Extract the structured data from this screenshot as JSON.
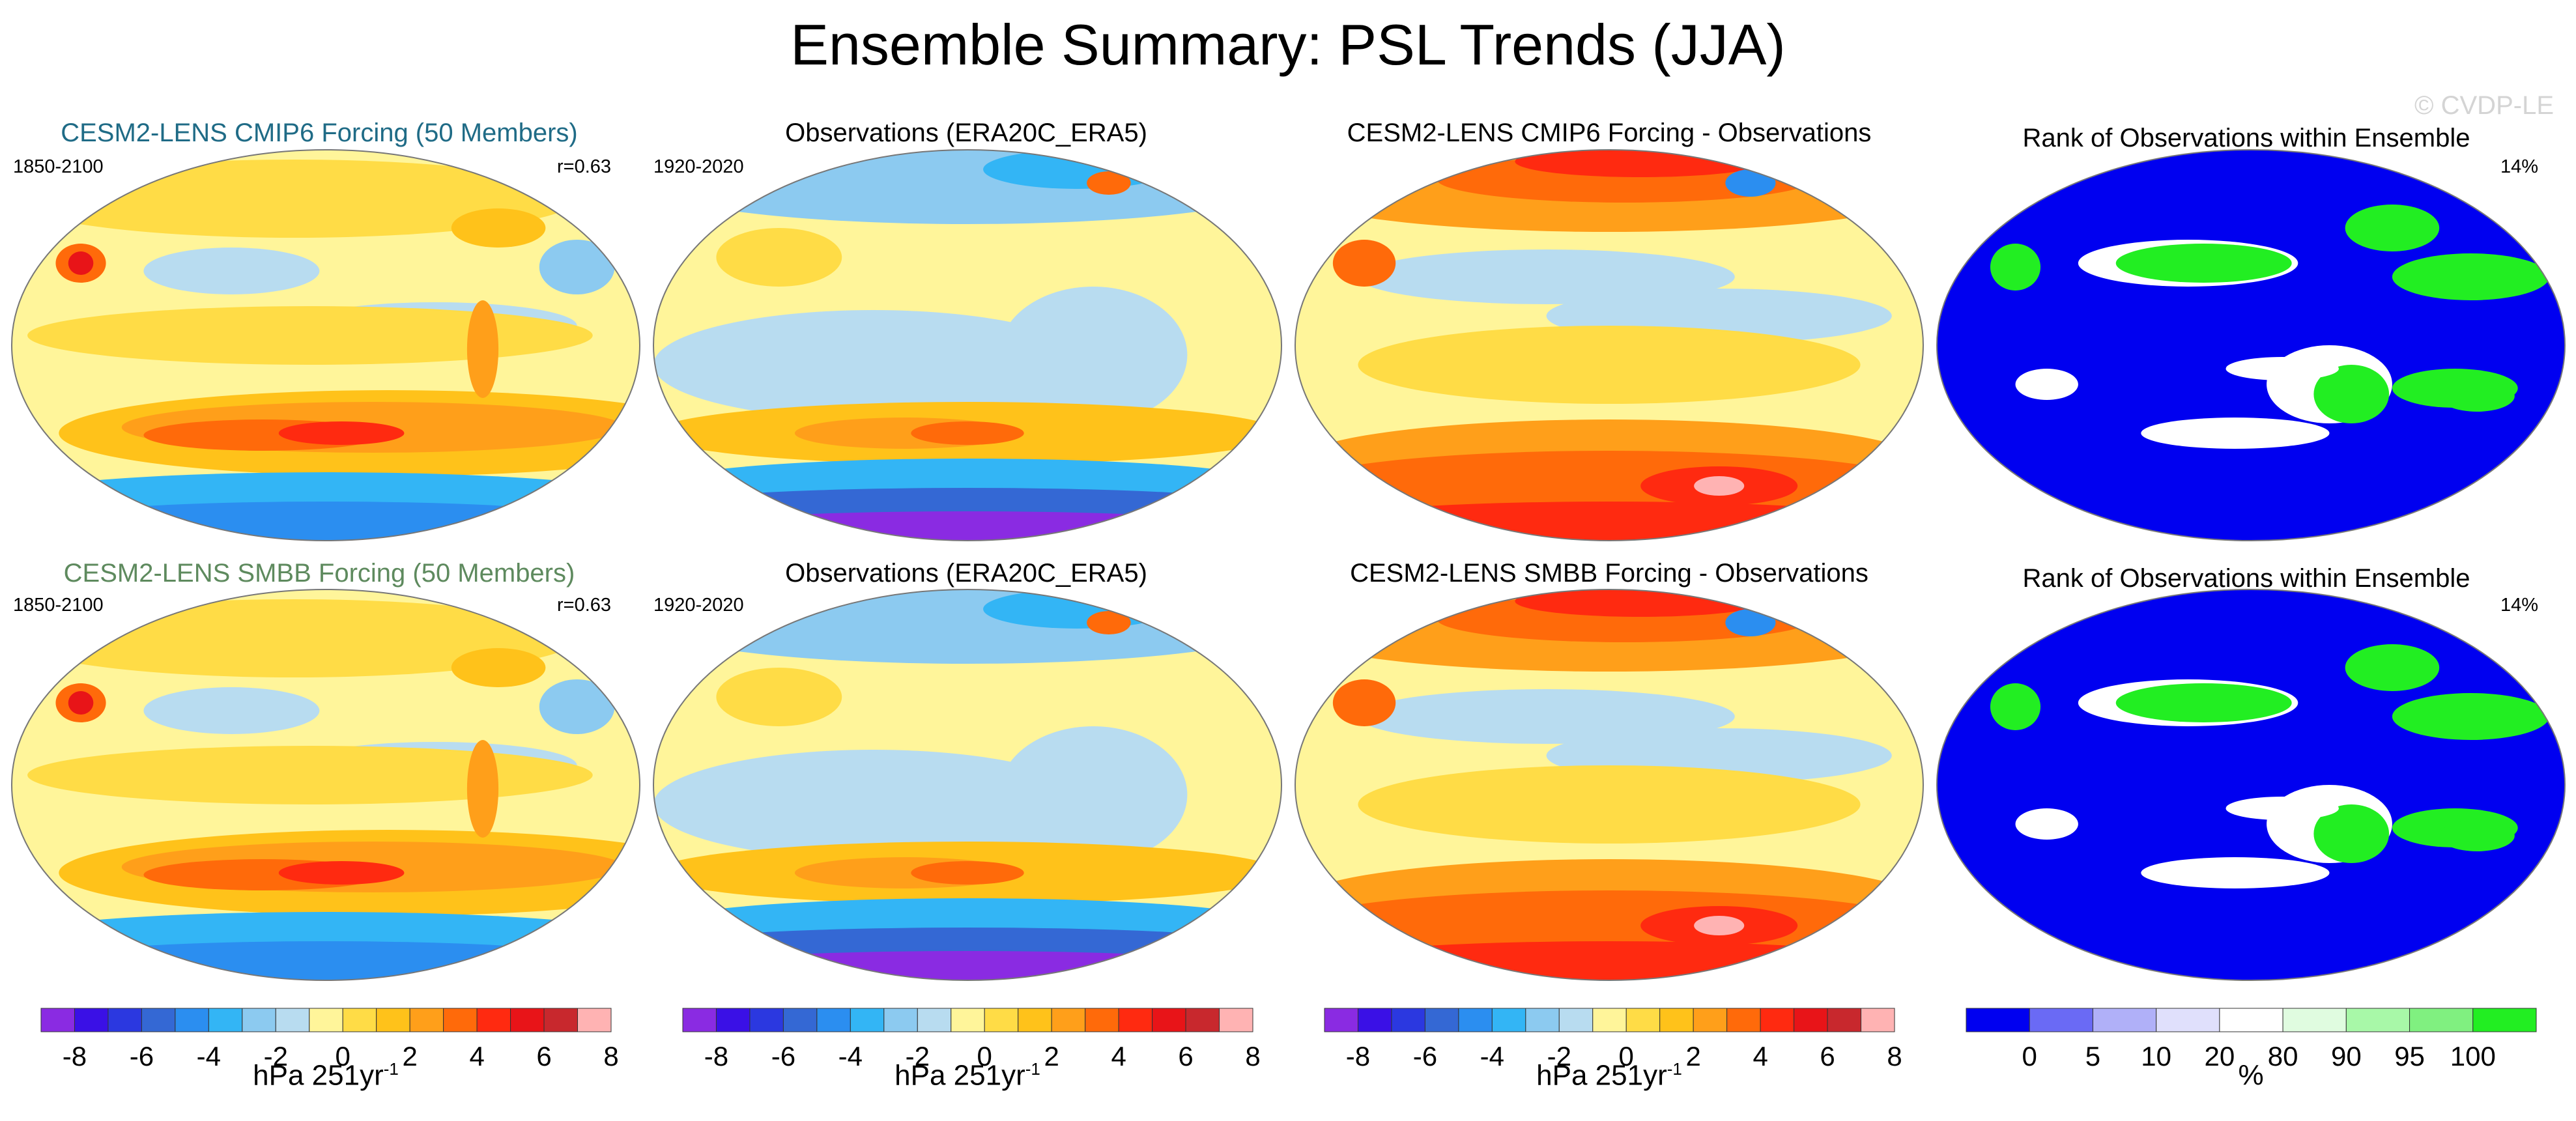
{
  "title": "Ensemble Summary: PSL Trends (JJA)",
  "watermark": "© CVDP-LE",
  "colors": {
    "hpa_levels": [
      "#8a2be2",
      "#3a10e6",
      "#2b38e0",
      "#3468d4",
      "#2b8ef0",
      "#33b5f5",
      "#8ccaf0",
      "#b8dcf0",
      "#fff59a",
      "#ffdc46",
      "#ffc21a",
      "#ff9f1a",
      "#ff6a0a",
      "#ff2a10",
      "#e81418",
      "#c8282d",
      "#ffb3b3"
    ],
    "rank_levels": [
      "#0000f0",
      "#6a6af5",
      "#b0b0f8",
      "#e0e0fc",
      "#ffffff",
      "#e0fce0",
      "#a8f8a8",
      "#80f080",
      "#22ee22"
    ]
  },
  "chart_data": [
    {
      "type": "heatmap",
      "row": 1,
      "col": 1,
      "title": "CESM2-LENS CMIP6 Forcing (50 Members)",
      "title_color": "#1f6b86",
      "left_label": "1850-2100",
      "right_label": "r=0.63",
      "colorbar": "hpa"
    },
    {
      "type": "heatmap",
      "row": 1,
      "col": 2,
      "title": "Observations (ERA20C_ERA5)",
      "title_color": "#000000",
      "left_label": "1920-2020",
      "right_label": "",
      "colorbar": "hpa"
    },
    {
      "type": "heatmap",
      "row": 1,
      "col": 3,
      "title": "CESM2-LENS CMIP6 Forcing - Observations",
      "title_color": "#000000",
      "left_label": "",
      "right_label": "",
      "colorbar": "hpa"
    },
    {
      "type": "heatmap",
      "row": 1,
      "col": 4,
      "title": "Rank of Observations within Ensemble",
      "title_color": "#000000",
      "left_label": "",
      "right_label": "14%",
      "colorbar": "rank"
    },
    {
      "type": "heatmap",
      "row": 2,
      "col": 1,
      "title": "CESM2-LENS SMBB Forcing (50 Members)",
      "title_color": "#5e8a5e",
      "left_label": "1850-2100",
      "right_label": "r=0.63",
      "colorbar": "hpa"
    },
    {
      "type": "heatmap",
      "row": 2,
      "col": 2,
      "title": "Observations (ERA20C_ERA5)",
      "title_color": "#000000",
      "left_label": "1920-2020",
      "right_label": "",
      "colorbar": "hpa"
    },
    {
      "type": "heatmap",
      "row": 2,
      "col": 3,
      "title": "CESM2-LENS SMBB Forcing - Observations",
      "title_color": "#000000",
      "left_label": "",
      "right_label": "",
      "colorbar": "hpa"
    },
    {
      "type": "heatmap",
      "row": 2,
      "col": 4,
      "title": "Rank of Observations within Ensemble",
      "title_color": "#000000",
      "left_label": "",
      "right_label": "14%",
      "colorbar": "rank"
    }
  ],
  "colorbars": {
    "hpa": {
      "ticks": [
        "-8",
        "-6",
        "-4",
        "-2",
        "0",
        "2",
        "4",
        "6",
        "8"
      ],
      "label_main": "hPa 251yr",
      "label_sup": "-1",
      "label_main_obs": "hPa 251yr",
      "label_sup_obs": "-1"
    },
    "rank": {
      "ticks": [
        "0",
        "5",
        "10",
        "20",
        "80",
        "90",
        "95",
        "100"
      ],
      "label": "%"
    }
  }
}
